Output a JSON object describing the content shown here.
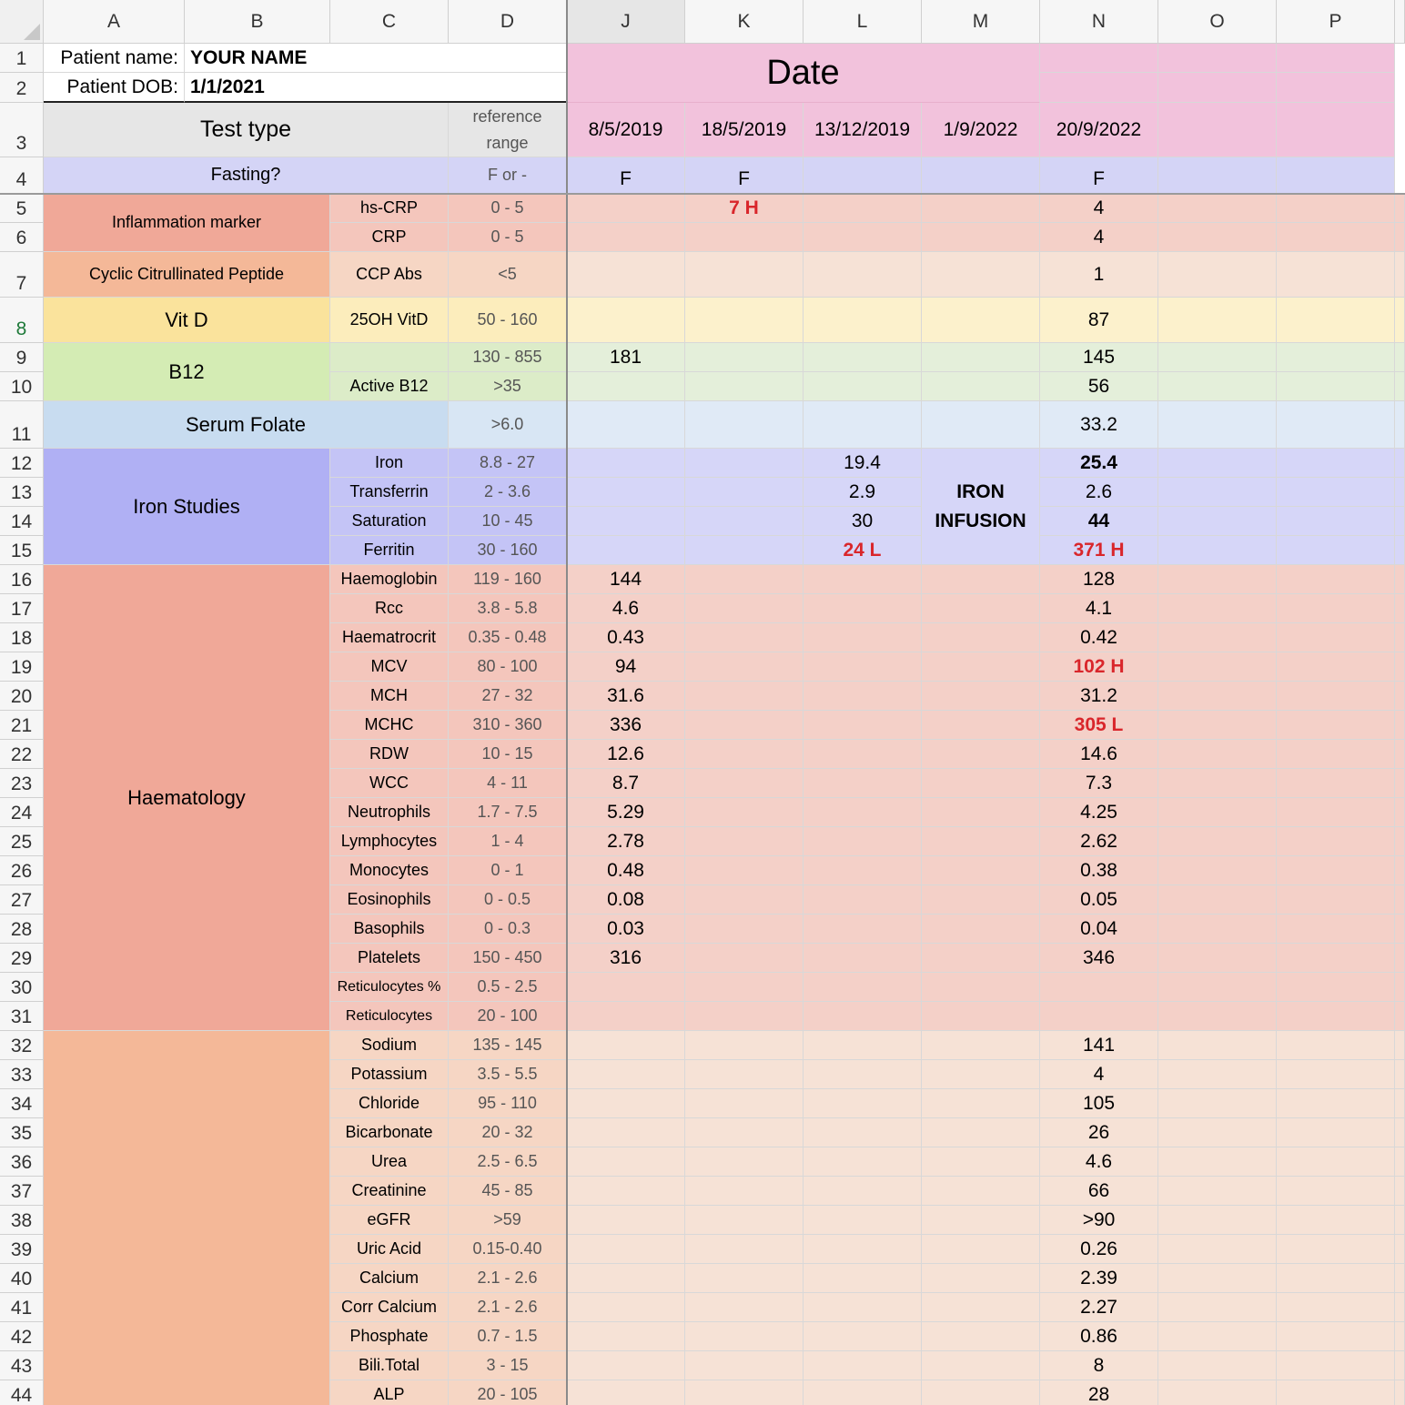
{
  "columns": [
    "A",
    "B",
    "C",
    "D",
    "J",
    "K",
    "L",
    "M",
    "N",
    "O",
    "P"
  ],
  "rows": [
    "1",
    "2",
    "3",
    "4",
    "5",
    "6",
    "7",
    "8",
    "9",
    "10",
    "11",
    "12",
    "13",
    "14",
    "15",
    "16",
    "17",
    "18",
    "19",
    "20",
    "21",
    "22",
    "23",
    "24",
    "25",
    "26",
    "27",
    "28",
    "29",
    "30",
    "31",
    "32",
    "33",
    "34",
    "35",
    "36",
    "37",
    "38",
    "39",
    "40",
    "41",
    "42",
    "43",
    "44"
  ],
  "selected_cell": "J8",
  "header": {
    "patient_name_label": "Patient name:",
    "patient_name_value": "YOUR NAME",
    "patient_dob_label": "Patient DOB:",
    "patient_dob_value": "1/1/2021",
    "date_title": "Date",
    "test_type_label": "Test type",
    "reference_range_label_line1": "reference",
    "reference_range_label_line2": "range",
    "dates": [
      "8/5/2019",
      "18/5/2019",
      "13/12/2019",
      "1/9/2022",
      "20/9/2022"
    ],
    "fasting_label": "Fasting?",
    "fasting_ref": "F or -",
    "fasting_values": [
      "F",
      "F",
      "",
      "",
      "F"
    ]
  },
  "groups": [
    {
      "label": "Inflammation marker",
      "color": "#f0a898"
    },
    {
      "label": "Cyclic Citrullinated Peptide",
      "color": "#f4b898"
    },
    {
      "label": "Vit D",
      "color": "#fae39c"
    },
    {
      "label": "B12",
      "color": "#d4ecb4"
    },
    {
      "label": "Serum Folate",
      "color": "#c8dcf0"
    },
    {
      "label": "Iron Studies",
      "color": "#b0b0f4"
    },
    {
      "label": "Haematology",
      "color": "#f0a898"
    },
    {
      "label": "",
      "color": "#f4b898"
    }
  ],
  "tests": [
    {
      "name": "hs-CRP",
      "ref": "0 - 5",
      "values": [
        "",
        "7 H",
        "",
        "",
        "4"
      ],
      "flags": [
        false,
        true,
        false,
        false,
        false
      ]
    },
    {
      "name": "CRP",
      "ref": "0 - 5",
      "values": [
        "",
        "",
        "",
        "",
        "4"
      ]
    },
    {
      "name": "CCP Abs",
      "ref": "<5",
      "values": [
        "",
        "",
        "",
        "",
        "1"
      ]
    },
    {
      "name": "25OH VitD",
      "ref": "50 - 160",
      "values": [
        "",
        "",
        "",
        "",
        "87"
      ]
    },
    {
      "name": "",
      "ref": "130 - 855",
      "values": [
        "181",
        "",
        "",
        "",
        "145"
      ]
    },
    {
      "name": "Active B12",
      "ref": ">35",
      "values": [
        "",
        "",
        "",
        "",
        "56"
      ]
    },
    {
      "name": "",
      "ref": ">6.0",
      "values": [
        "",
        "",
        "",
        "",
        "33.2"
      ]
    },
    {
      "name": "Iron",
      "ref": "8.8 - 27",
      "values": [
        "",
        "",
        "19.4",
        "",
        "25.4"
      ]
    },
    {
      "name": "Transferrin",
      "ref": "2 - 3.6",
      "values": [
        "",
        "",
        "2.9",
        "",
        "2.6"
      ]
    },
    {
      "name": "Saturation",
      "ref": "10 - 45",
      "values": [
        "",
        "",
        "30",
        "",
        "44"
      ]
    },
    {
      "name": "Ferritin",
      "ref": "30 - 160",
      "values": [
        "",
        "",
        "24 L",
        "",
        "371 H"
      ]
    },
    {
      "name": "Haemoglobin",
      "ref": "119 - 160",
      "values": [
        "144",
        "",
        "",
        "",
        "128"
      ]
    },
    {
      "name": "Rcc",
      "ref": "3.8 - 5.8",
      "values": [
        "4.6",
        "",
        "",
        "",
        "4.1"
      ]
    },
    {
      "name": "Haematrocrit",
      "ref": "0.35 - 0.48",
      "values": [
        "0.43",
        "",
        "",
        "",
        "0.42"
      ]
    },
    {
      "name": "MCV",
      "ref": "80 - 100",
      "values": [
        "94",
        "",
        "",
        "",
        "102 H"
      ]
    },
    {
      "name": "MCH",
      "ref": "27 - 32",
      "values": [
        "31.6",
        "",
        "",
        "",
        "31.2"
      ]
    },
    {
      "name": "MCHC",
      "ref": "310 - 360",
      "values": [
        "336",
        "",
        "",
        "",
        "305 L"
      ]
    },
    {
      "name": "RDW",
      "ref": "10 - 15",
      "values": [
        "12.6",
        "",
        "",
        "",
        "14.6"
      ]
    },
    {
      "name": "WCC",
      "ref": "4 - 11",
      "values": [
        "8.7",
        "",
        "",
        "",
        "7.3"
      ]
    },
    {
      "name": "Neutrophils",
      "ref": "1.7 - 7.5",
      "values": [
        "5.29",
        "",
        "",
        "",
        "4.25"
      ]
    },
    {
      "name": "Lymphocytes",
      "ref": "1 - 4",
      "values": [
        "2.78",
        "",
        "",
        "",
        "2.62"
      ]
    },
    {
      "name": "Monocytes",
      "ref": "0 - 1",
      "values": [
        "0.48",
        "",
        "",
        "",
        "0.38"
      ]
    },
    {
      "name": "Eosinophils",
      "ref": "0 - 0.5",
      "values": [
        "0.08",
        "",
        "",
        "",
        "0.05"
      ]
    },
    {
      "name": "Basophils",
      "ref": "0 - 0.3",
      "values": [
        "0.03",
        "",
        "",
        "",
        "0.04"
      ]
    },
    {
      "name": "Platelets",
      "ref": "150 - 450",
      "values": [
        "316",
        "",
        "",
        "",
        "346"
      ]
    },
    {
      "name": "Reticulocytes %",
      "ref": "0.5 - 2.5",
      "values": [
        "",
        "",
        "",
        "",
        ""
      ]
    },
    {
      "name": "Reticulocytes",
      "ref": "20 - 100",
      "values": [
        "",
        "",
        "",
        "",
        ""
      ]
    },
    {
      "name": "Sodium",
      "ref": "135 - 145",
      "values": [
        "",
        "",
        "",
        "",
        "141"
      ]
    },
    {
      "name": "Potassium",
      "ref": "3.5 - 5.5",
      "values": [
        "",
        "",
        "",
        "",
        "4"
      ]
    },
    {
      "name": "Chloride",
      "ref": "95 - 110",
      "values": [
        "",
        "",
        "",
        "",
        "105"
      ]
    },
    {
      "name": "Bicarbonate",
      "ref": "20 - 32",
      "values": [
        "",
        "",
        "",
        "",
        "26"
      ]
    },
    {
      "name": "Urea",
      "ref": "2.5 - 6.5",
      "values": [
        "",
        "",
        "",
        "",
        "4.6"
      ]
    },
    {
      "name": "Creatinine",
      "ref": "45 - 85",
      "values": [
        "",
        "",
        "",
        "",
        "66"
      ]
    },
    {
      "name": "eGFR",
      "ref": ">59",
      "values": [
        "",
        "",
        "",
        "",
        ">90"
      ]
    },
    {
      "name": "Uric Acid",
      "ref": "0.15-0.40",
      "values": [
        "",
        "",
        "",
        "",
        "0.26"
      ]
    },
    {
      "name": "Calcium",
      "ref": "2.1 - 2.6",
      "values": [
        "",
        "",
        "",
        "",
        "2.39"
      ]
    },
    {
      "name": "Corr Calcium",
      "ref": "2.1 - 2.6",
      "values": [
        "",
        "",
        "",
        "",
        "2.27"
      ]
    },
    {
      "name": "Phosphate",
      "ref": "0.7 - 1.5",
      "values": [
        "",
        "",
        "",
        "",
        "0.86"
      ]
    },
    {
      "name": "Bili.Total",
      "ref": "3 - 15",
      "values": [
        "",
        "",
        "",
        "",
        "8"
      ]
    },
    {
      "name": "ALP",
      "ref": "20 - 105",
      "values": [
        "",
        "",
        "",
        "",
        "28"
      ]
    }
  ],
  "iron_infusion_line1": "IRON",
  "iron_infusion_line2": "INFUSION",
  "flagged_values": [
    "7 H",
    "24 L",
    "371 H",
    "102 H",
    "305 L"
  ],
  "bold_values": [
    "25.4",
    "44"
  ]
}
